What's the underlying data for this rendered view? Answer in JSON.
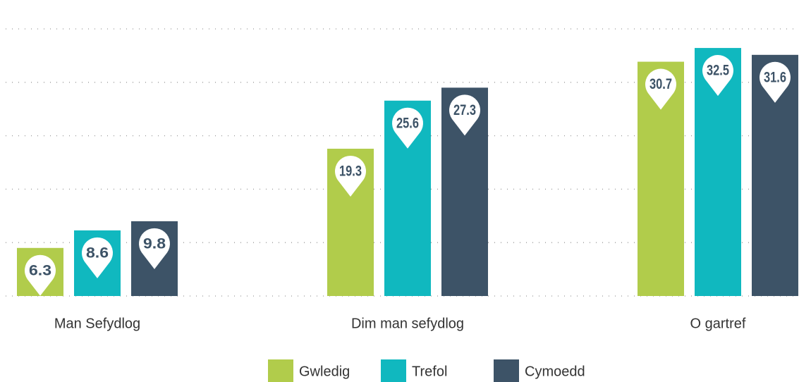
{
  "chart_data": {
    "type": "bar",
    "categories": [
      "Man Sefydlog",
      "Dim man sefydlog",
      "O gartref"
    ],
    "series": [
      {
        "name": "Gwledig",
        "color": "#b1cc4b",
        "values": [
          6.3,
          19.3,
          30.7
        ]
      },
      {
        "name": "Trefol",
        "color": "#10b8bf",
        "values": [
          8.6,
          25.6,
          32.5
        ]
      },
      {
        "name": "Cymoedd",
        "color": "#3d5367",
        "values": [
          9.8,
          27.3,
          31.6
        ]
      }
    ],
    "ylim": [
      0,
      35
    ],
    "yticks": [
      0,
      7,
      14,
      21,
      28,
      35
    ],
    "grid": true,
    "legend": "bottom"
  }
}
